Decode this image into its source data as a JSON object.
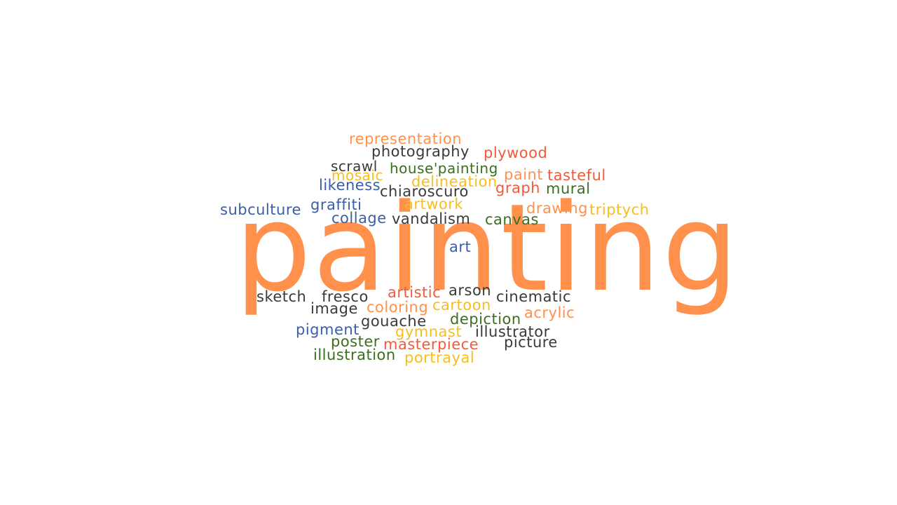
{
  "palette": {
    "orange": "#ff914d",
    "red": "#f15a3a",
    "yellow": "#f9bd1c",
    "green": "#3b6e1f",
    "blue": "#3b5ea4",
    "dark": "#3a3a3a"
  },
  "main_word": {
    "text": "painting",
    "color": "#ff914d"
  },
  "words": [
    {
      "text": "representation",
      "color": "#ff914d"
    },
    {
      "text": "photography",
      "color": "#3a3a3a"
    },
    {
      "text": "plywood",
      "color": "#f15a3a"
    },
    {
      "text": "scrawl",
      "color": "#3a3a3a"
    },
    {
      "text": "house'painting",
      "color": "#3b6e1f"
    },
    {
      "text": "mosaic",
      "color": "#f9bd1c"
    },
    {
      "text": "paint",
      "color": "#ff914d"
    },
    {
      "text": "tasteful",
      "color": "#f15a3a"
    },
    {
      "text": "likeness",
      "color": "#3b5ea4"
    },
    {
      "text": "delineation",
      "color": "#f9bd1c"
    },
    {
      "text": "chiaroscuro",
      "color": "#3a3a3a"
    },
    {
      "text": "graph",
      "color": "#f15a3a"
    },
    {
      "text": "mural",
      "color": "#3b6e1f"
    },
    {
      "text": "subculture",
      "color": "#3b5ea4"
    },
    {
      "text": "graffiti",
      "color": "#3b5ea4"
    },
    {
      "text": "artwork",
      "color": "#f9bd1c"
    },
    {
      "text": "drawing",
      "color": "#ff914d"
    },
    {
      "text": "triptych",
      "color": "#f9bd1c"
    },
    {
      "text": "collage",
      "color": "#3b5ea4"
    },
    {
      "text": "vandalism",
      "color": "#3a3a3a"
    },
    {
      "text": "canvas",
      "color": "#3b6e1f"
    },
    {
      "text": "art",
      "color": "#3b5ea4"
    },
    {
      "text": "sketch",
      "color": "#3a3a3a"
    },
    {
      "text": "fresco",
      "color": "#3a3a3a"
    },
    {
      "text": "artistic",
      "color": "#f15a3a"
    },
    {
      "text": "arson",
      "color": "#3a3a3a"
    },
    {
      "text": "cinematic",
      "color": "#3a3a3a"
    },
    {
      "text": "image",
      "color": "#3a3a3a"
    },
    {
      "text": "coloring",
      "color": "#ff914d"
    },
    {
      "text": "cartoon",
      "color": "#f9bd1c"
    },
    {
      "text": "acrylic",
      "color": "#ff914d"
    },
    {
      "text": "gouache",
      "color": "#3a3a3a"
    },
    {
      "text": "depiction",
      "color": "#3b6e1f"
    },
    {
      "text": "pigment",
      "color": "#3b5ea4"
    },
    {
      "text": "gymnast",
      "color": "#f9bd1c"
    },
    {
      "text": "illustrator",
      "color": "#3a3a3a"
    },
    {
      "text": "poster",
      "color": "#3b6e1f"
    },
    {
      "text": "masterpiece",
      "color": "#f15a3a"
    },
    {
      "text": "picture",
      "color": "#3a3a3a"
    },
    {
      "text": "illustration",
      "color": "#3b6e1f"
    },
    {
      "text": "portrayal",
      "color": "#f9bd1c"
    }
  ]
}
